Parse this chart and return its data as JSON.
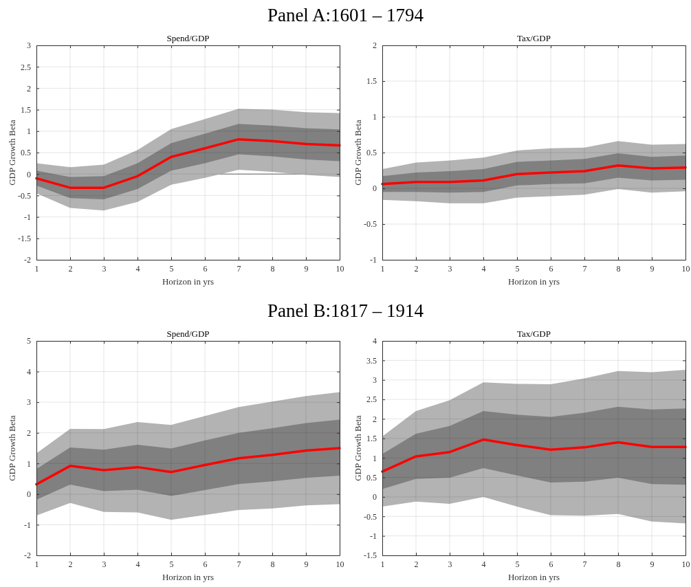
{
  "chart_data": [
    {
      "type": "line",
      "annotations": [
        "Panel A:1601 – 1794"
      ],
      "title": "Spend/GDP",
      "xlabel": "Horizon in yrs",
      "ylabel": "GDP Growth Beta",
      "x": [
        1,
        2,
        3,
        4,
        5,
        6,
        7,
        8,
        9,
        10
      ],
      "xlim": [
        1,
        10
      ],
      "xticks": [
        1,
        2,
        3,
        4,
        5,
        6,
        7,
        8,
        9,
        10
      ],
      "ylim": [
        -2,
        3
      ],
      "yticks": [
        -2,
        -1.5,
        -1,
        -0.5,
        0,
        0.5,
        1,
        1.5,
        2,
        2.5,
        3
      ],
      "grid": true,
      "ref_lines": [
        {
          "axis": "y",
          "value": 0,
          "color": "#404040"
        }
      ],
      "series": [
        {
          "type": "line",
          "color": "#b3b3b3",
          "values": [
            null,
            null,
            null,
            null,
            null,
            null,
            null,
            null,
            null,
            null
          ],
          "lower": [
            -0.45,
            -0.79,
            -0.85,
            -0.65,
            -0.25,
            -0.09,
            0.1,
            0.05,
            -0.02,
            -0.07
          ],
          "upper": [
            0.25,
            0.16,
            0.22,
            0.56,
            1.05,
            1.28,
            1.52,
            1.5,
            1.44,
            1.42
          ]
        },
        {
          "type": "line",
          "color": "#ff0000",
          "values": [
            -0.1,
            -0.32,
            -0.32,
            -0.05,
            0.4,
            0.6,
            0.81,
            0.77,
            0.7,
            0.67
          ],
          "lower": [
            -0.27,
            -0.56,
            -0.59,
            -0.35,
            0.08,
            0.25,
            0.46,
            0.41,
            0.34,
            0.3
          ],
          "upper": [
            0.08,
            -0.07,
            -0.05,
            0.25,
            0.72,
            0.94,
            1.17,
            1.13,
            1.07,
            1.04
          ]
        }
      ]
    },
    {
      "type": "line",
      "title": "Tax/GDP",
      "xlabel": "Horizon in yrs",
      "ylabel": "GDP Growth Beta",
      "x": [
        1,
        2,
        3,
        4,
        5,
        6,
        7,
        8,
        9,
        10
      ],
      "xlim": [
        1,
        10
      ],
      "xticks": [
        1,
        2,
        3,
        4,
        5,
        6,
        7,
        8,
        9,
        10
      ],
      "ylim": [
        -1,
        2
      ],
      "yticks": [
        -1,
        -0.5,
        0,
        0.5,
        1,
        1.5,
        2
      ],
      "grid": true,
      "series": [
        {
          "type": "line",
          "color": "#b3b3b3",
          "values": [
            null,
            null,
            null,
            null,
            null,
            null,
            null,
            null,
            null,
            null
          ],
          "lower": [
            -0.16,
            -0.18,
            -0.21,
            -0.21,
            -0.13,
            -0.11,
            -0.09,
            -0.01,
            -0.06,
            -0.04
          ],
          "upper": [
            0.27,
            0.36,
            0.39,
            0.43,
            0.53,
            0.56,
            0.57,
            0.66,
            0.61,
            0.62
          ]
        },
        {
          "type": "line",
          "color": "#ff0000",
          "values": [
            0.06,
            0.09,
            0.09,
            0.11,
            0.2,
            0.22,
            0.24,
            0.32,
            0.28,
            0.29
          ],
          "lower": [
            -0.05,
            -0.05,
            -0.06,
            -0.05,
            0.04,
            0.06,
            0.07,
            0.15,
            0.11,
            0.12
          ],
          "upper": [
            0.17,
            0.22,
            0.24,
            0.27,
            0.37,
            0.39,
            0.41,
            0.49,
            0.44,
            0.46
          ]
        }
      ]
    },
    {
      "type": "line",
      "annotations": [
        "Panel B:1817 – 1914"
      ],
      "title": "Spend/GDP",
      "xlabel": "Horizon in yrs",
      "ylabel": "GDP Growth Beta",
      "x": [
        1,
        2,
        3,
        4,
        5,
        6,
        7,
        8,
        9,
        10
      ],
      "xlim": [
        1,
        10
      ],
      "xticks": [
        1,
        2,
        3,
        4,
        5,
        6,
        7,
        8,
        9,
        10
      ],
      "ylim": [
        -2,
        5
      ],
      "yticks": [
        -2,
        -1,
        0,
        1,
        2,
        3,
        4,
        5
      ],
      "grid": true,
      "series": [
        {
          "type": "line",
          "color": "#b3b3b3",
          "values": [
            null,
            null,
            null,
            null,
            null,
            null,
            null,
            null,
            null,
            null
          ],
          "lower": [
            -0.7,
            -0.29,
            -0.58,
            -0.6,
            -0.84,
            -0.68,
            -0.52,
            -0.47,
            -0.37,
            -0.33
          ],
          "upper": [
            1.33,
            2.13,
            2.12,
            2.35,
            2.26,
            2.55,
            2.84,
            3.02,
            3.2,
            3.33
          ]
        },
        {
          "type": "line",
          "color": "#ff0000",
          "values": [
            0.32,
            0.92,
            0.78,
            0.88,
            0.72,
            0.95,
            1.17,
            1.28,
            1.42,
            1.5
          ],
          "lower": [
            -0.18,
            0.31,
            0.1,
            0.14,
            -0.06,
            0.13,
            0.33,
            0.42,
            0.53,
            0.6
          ],
          "upper": [
            0.82,
            1.52,
            1.45,
            1.61,
            1.49,
            1.75,
            2.0,
            2.15,
            2.32,
            2.43
          ]
        }
      ]
    },
    {
      "type": "line",
      "title": "Tax/GDP",
      "xlabel": "Horizon in yrs",
      "ylabel": "GDP Growth Beta",
      "x": [
        1,
        2,
        3,
        4,
        5,
        6,
        7,
        8,
        9,
        10
      ],
      "xlim": [
        1,
        10
      ],
      "xticks": [
        1,
        2,
        3,
        4,
        5,
        6,
        7,
        8,
        9,
        10
      ],
      "ylim": [
        -1.5,
        4
      ],
      "yticks": [
        -1.5,
        -1,
        -0.5,
        0,
        0.5,
        1,
        1.5,
        2,
        2.5,
        3,
        3.5,
        4
      ],
      "grid": true,
      "series": [
        {
          "type": "line",
          "color": "#b3b3b3",
          "values": [
            null,
            null,
            null,
            null,
            null,
            null,
            null,
            null,
            null,
            null
          ],
          "lower": [
            -0.25,
            -0.12,
            -0.18,
            0,
            -0.25,
            -0.47,
            -0.48,
            -0.44,
            -0.63,
            -0.68
          ],
          "upper": [
            1.55,
            2.2,
            2.48,
            2.94,
            2.9,
            2.89,
            3.04,
            3.23,
            3.2,
            3.26
          ]
        },
        {
          "type": "line",
          "color": "#ff0000",
          "values": [
            0.65,
            1.04,
            1.15,
            1.47,
            1.33,
            1.21,
            1.27,
            1.4,
            1.28,
            1.28
          ],
          "lower": [
            0.2,
            0.46,
            0.49,
            0.74,
            0.55,
            0.37,
            0.39,
            0.49,
            0.33,
            0.31
          ],
          "upper": [
            1.1,
            1.62,
            1.82,
            2.2,
            2.11,
            2.05,
            2.16,
            2.31,
            2.24,
            2.27
          ]
        }
      ]
    }
  ]
}
